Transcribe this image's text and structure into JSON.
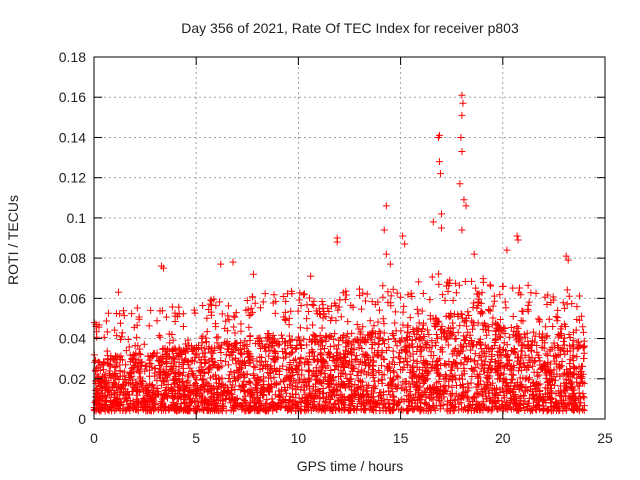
{
  "chart_data": {
    "type": "scatter",
    "title": "Day 356 of 2021, Rate Of TEC Index for receiver p803",
    "xlabel": "GPS time / hours",
    "ylabel": "ROTI / TECUs",
    "xlim": [
      0,
      25
    ],
    "ylim": [
      0,
      0.18
    ],
    "xticks": [
      0,
      5,
      10,
      15,
      20,
      25
    ],
    "xtick_labels": [
      "0",
      "5",
      "10",
      "15",
      "20",
      "25"
    ],
    "yticks": [
      0,
      0.02,
      0.04,
      0.06,
      0.08,
      0.1,
      0.12,
      0.14,
      0.16,
      0.18
    ],
    "ytick_labels": [
      "0",
      "0.02",
      "0.04",
      "0.06",
      "0.08",
      "0.1",
      "0.12",
      "0.14",
      "0.16",
      "0.18"
    ],
    "grid": true,
    "marker": "+",
    "color": "#ff0000",
    "series": [
      {
        "name": "ROTI",
        "notable_points": [
          {
            "x": 0.1,
            "y": 0.046
          },
          {
            "x": 1.2,
            "y": 0.063
          },
          {
            "x": 3.3,
            "y": 0.076
          },
          {
            "x": 3.4,
            "y": 0.075
          },
          {
            "x": 6.2,
            "y": 0.077
          },
          {
            "x": 6.8,
            "y": 0.078
          },
          {
            "x": 7.8,
            "y": 0.072
          },
          {
            "x": 10.6,
            "y": 0.071
          },
          {
            "x": 11.9,
            "y": 0.09
          },
          {
            "x": 11.9,
            "y": 0.088
          },
          {
            "x": 14.3,
            "y": 0.106
          },
          {
            "x": 14.2,
            "y": 0.094
          },
          {
            "x": 14.3,
            "y": 0.082
          },
          {
            "x": 14.5,
            "y": 0.077
          },
          {
            "x": 15.1,
            "y": 0.091
          },
          {
            "x": 15.2,
            "y": 0.087
          },
          {
            "x": 16.6,
            "y": 0.098
          },
          {
            "x": 16.9,
            "y": 0.141
          },
          {
            "x": 16.85,
            "y": 0.14
          },
          {
            "x": 16.9,
            "y": 0.128
          },
          {
            "x": 16.95,
            "y": 0.122
          },
          {
            "x": 17.0,
            "y": 0.102
          },
          {
            "x": 17.0,
            "y": 0.095
          },
          {
            "x": 18.0,
            "y": 0.161
          },
          {
            "x": 18.05,
            "y": 0.157
          },
          {
            "x": 18.0,
            "y": 0.151
          },
          {
            "x": 17.95,
            "y": 0.14
          },
          {
            "x": 18.0,
            "y": 0.133
          },
          {
            "x": 17.9,
            "y": 0.117
          },
          {
            "x": 18.1,
            "y": 0.109
          },
          {
            "x": 18.2,
            "y": 0.106
          },
          {
            "x": 18.0,
            "y": 0.094
          },
          {
            "x": 18.6,
            "y": 0.082
          },
          {
            "x": 20.2,
            "y": 0.084
          },
          {
            "x": 20.7,
            "y": 0.091
          },
          {
            "x": 20.75,
            "y": 0.089
          },
          {
            "x": 23.1,
            "y": 0.081
          },
          {
            "x": 23.2,
            "y": 0.079
          }
        ],
        "background_envelope": {
          "x_start": 0.0,
          "x_end": 24.0,
          "typical_min": 0.004,
          "typical_max": 0.035,
          "profile": [
            {
              "x": 0,
              "upper": 0.03
            },
            {
              "x": 3,
              "upper": 0.035
            },
            {
              "x": 6,
              "upper": 0.038
            },
            {
              "x": 9,
              "upper": 0.042
            },
            {
              "x": 12,
              "upper": 0.042
            },
            {
              "x": 15,
              "upper": 0.046
            },
            {
              "x": 17,
              "upper": 0.052
            },
            {
              "x": 18,
              "upper": 0.055
            },
            {
              "x": 20,
              "upper": 0.046
            },
            {
              "x": 22,
              "upper": 0.044
            },
            {
              "x": 24,
              "upper": 0.042
            }
          ]
        }
      }
    ]
  }
}
